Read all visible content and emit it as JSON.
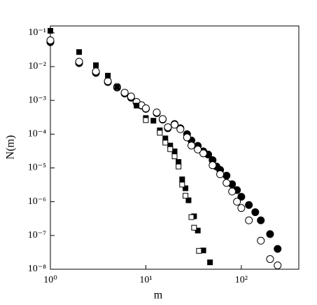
{
  "chart_data": {
    "type": "scatter",
    "xlabel": "m",
    "ylabel": "N(m)",
    "xscale": "log",
    "yscale": "log",
    "xlim": [
      1,
      400
    ],
    "ylim": [
      1e-08,
      0.16
    ],
    "xticks": [
      {
        "value": 1,
        "label": "10⁰"
      },
      {
        "value": 10,
        "label": "10¹"
      },
      {
        "value": 100,
        "label": "10²"
      }
    ],
    "yticks": [
      {
        "value": 0.1,
        "label": "10⁻¹"
      },
      {
        "value": 0.01,
        "label": "10⁻²"
      },
      {
        "value": 0.001,
        "label": "10⁻³"
      },
      {
        "value": 0.0001,
        "label": "10⁻⁴"
      },
      {
        "value": 1e-05,
        "label": "10⁻⁵"
      },
      {
        "value": 1e-06,
        "label": "10⁻⁶"
      },
      {
        "value": 1e-07,
        "label": "10⁻⁷"
      },
      {
        "value": 1e-08,
        "label": "10⁻⁸"
      }
    ],
    "series": [
      {
        "marker": "circle",
        "filled": true,
        "color": "#000000",
        "x": [
          1,
          2,
          3,
          4,
          5,
          6,
          7,
          8,
          9,
          10,
          13,
          15,
          17,
          20,
          23,
          27,
          30,
          35,
          40,
          45,
          50,
          55,
          60,
          70,
          80,
          90,
          100,
          120,
          140,
          160,
          200,
          240
        ],
        "values": [
          0.053,
          0.0127,
          0.0065,
          0.0035,
          0.0024,
          0.0016,
          0.0012,
          0.00086,
          0.0007,
          0.00056,
          0.00042,
          0.00027,
          0.00015,
          0.0002,
          0.00015,
          0.0001,
          6.5e-05,
          4.5e-05,
          3.1e-05,
          2.5e-05,
          1.7e-05,
          1.1e-05,
          8.7e-06,
          5.9e-06,
          3.3e-06,
          2.2e-06,
          1.4e-06,
          8e-07,
          4.9e-07,
          2.8e-07,
          1.1e-07,
          4e-08
        ]
      },
      {
        "marker": "circle",
        "filled": false,
        "color": "#000000",
        "x": [
          1,
          2,
          3,
          4,
          5,
          6,
          7,
          8,
          9,
          10,
          13,
          15,
          17,
          20,
          23,
          27,
          30,
          35,
          40,
          50,
          60,
          70,
          80,
          90,
          100,
          120,
          160,
          200,
          240
        ],
        "values": [
          0.06,
          0.014,
          0.0072,
          0.0037,
          0.0025,
          0.0017,
          0.0013,
          0.0009,
          0.00072,
          0.00058,
          0.00044,
          0.00028,
          0.00016,
          0.00019,
          0.00014,
          8e-05,
          4.6e-05,
          3.5e-05,
          2.7e-05,
          1.2e-05,
          6.5e-06,
          3.6e-06,
          2e-06,
          1e-06,
          6.5e-07,
          2.8e-07,
          7e-08,
          2e-08,
          1.3e-08
        ]
      },
      {
        "marker": "square",
        "filled": true,
        "color": "#000000",
        "x": [
          1,
          2,
          3,
          4,
          5,
          8,
          10,
          12,
          14,
          16,
          18,
          20,
          22,
          24,
          26,
          28,
          32,
          35,
          40,
          47
        ],
        "values": [
          0.115,
          0.027,
          0.011,
          0.0054,
          0.0025,
          0.0007,
          0.0003,
          0.00025,
          0.00013,
          7.5e-05,
          4.6e-05,
          3.1e-05,
          1.5e-05,
          4.6e-06,
          2.5e-06,
          1.1e-06,
          3.7e-07,
          1.4e-07,
          3.6e-08,
          1.6e-08
        ]
      },
      {
        "marker": "square",
        "filled": false,
        "color": "#000000",
        "x": [
          10,
          14,
          16,
          18,
          20,
          22,
          24,
          26,
          30,
          32,
          36
        ],
        "values": [
          0.00026,
          0.00011,
          5.6e-05,
          3.6e-05,
          2.2e-05,
          1.1e-05,
          3.2e-06,
          1.5e-06,
          3.5e-07,
          1.7e-07,
          3.5e-08
        ]
      }
    ]
  }
}
